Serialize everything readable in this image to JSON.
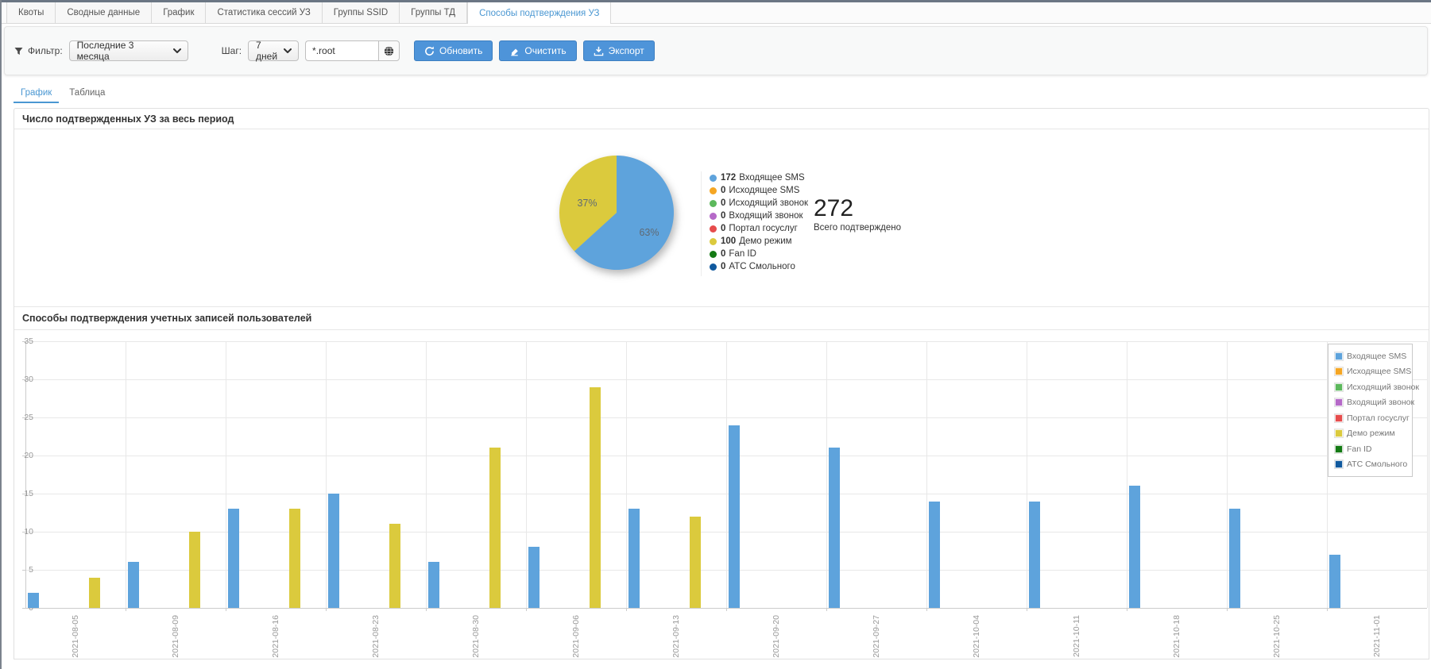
{
  "tabs": {
    "items": [
      "Квоты",
      "Сводные данные",
      "График",
      "Статистика сессий УЗ",
      "Группы SSID",
      "Группы ТД",
      "Способы подтверждения УЗ"
    ],
    "active": "Способы подтверждения УЗ"
  },
  "toolbar": {
    "filter_label": "Фильтр:",
    "filter_value": "Последние 3 месяца",
    "step_label": "Шаг:",
    "step_value": "7 дней",
    "query_value": "*.root",
    "refresh_label": "Обновить",
    "clear_label": "Очистить",
    "export_label": "Экспорт"
  },
  "view_tabs": {
    "items": [
      "График",
      "Таблица"
    ],
    "active": "График"
  },
  "sections": {
    "pie_title": "Число подтвержденных УЗ за весь период",
    "bar_title": "Способы подтверждения учетных записей пользователей"
  },
  "summary": {
    "total": "272",
    "total_label": "Всего подтверждено"
  },
  "palette": {
    "accent_blue": "#4a97d2",
    "button_blue": "#4e94d9",
    "series": [
      "#5ea3dc",
      "#f5a623",
      "#5cb85c",
      "#b569c8",
      "#e64c4c",
      "#dbca3d",
      "#147a14",
      "#10599e"
    ]
  },
  "chart_data": [
    {
      "type": "pie",
      "title": "Число подтвержденных УЗ за весь период",
      "labels": [
        "Входящее SMS",
        "Исходящее SMS",
        "Исходящий звонок",
        "Входящий звонок",
        "Портал госуслуг",
        "Демо режим",
        "Fan ID",
        "АТС Смольного"
      ],
      "values": [
        172,
        0,
        0,
        0,
        0,
        100,
        0,
        0
      ],
      "colors": [
        "#5ea3dc",
        "#f5a623",
        "#5cb85c",
        "#b569c8",
        "#e64c4c",
        "#dbca3d",
        "#147a14",
        "#10599e"
      ],
      "shown_percent_labels": [
        "63%",
        "37%"
      ],
      "total": 272,
      "total_label": "Всего подтверждено",
      "legend_position": "right"
    },
    {
      "type": "bar",
      "title": "Способы подтверждения учетных записей пользователей",
      "categories": [
        "2021-08-05",
        "2021-08-09",
        "2021-08-16",
        "2021-08-23",
        "2021-08-30",
        "2021-09-06",
        "2021-09-13",
        "2021-09-20",
        "2021-09-27",
        "2021-10-04",
        "2021-10-11",
        "2021-10-18",
        "2021-10-25",
        "2021-11-01"
      ],
      "ylim": [
        0,
        35
      ],
      "ytick_step": 5,
      "grid": true,
      "legend_position": "top-right",
      "series": [
        {
          "name": "Входящее SMS",
          "color": "#5ea3dc",
          "values": [
            2,
            6,
            13,
            15,
            6,
            8,
            13,
            24,
            21,
            14,
            14,
            16,
            13,
            7
          ]
        },
        {
          "name": "Исходящее SMS",
          "color": "#f5a623",
          "values": [
            0,
            0,
            0,
            0,
            0,
            0,
            0,
            0,
            0,
            0,
            0,
            0,
            0,
            0
          ]
        },
        {
          "name": "Исходящий звонок",
          "color": "#5cb85c",
          "values": [
            0,
            0,
            0,
            0,
            0,
            0,
            0,
            0,
            0,
            0,
            0,
            0,
            0,
            0
          ]
        },
        {
          "name": "Входящий звонок",
          "color": "#b569c8",
          "values": [
            0,
            0,
            0,
            0,
            0,
            0,
            0,
            0,
            0,
            0,
            0,
            0,
            0,
            0
          ]
        },
        {
          "name": "Портал госуслуг",
          "color": "#e64c4c",
          "values": [
            0,
            0,
            0,
            0,
            0,
            0,
            0,
            0,
            0,
            0,
            0,
            0,
            0,
            0
          ]
        },
        {
          "name": "Демо режим",
          "color": "#dbca3d",
          "values": [
            4,
            10,
            13,
            11,
            21,
            29,
            12,
            0,
            0,
            0,
            0,
            0,
            0,
            0
          ]
        },
        {
          "name": "Fan ID",
          "color": "#147a14",
          "values": [
            0,
            0,
            0,
            0,
            0,
            0,
            0,
            0,
            0,
            0,
            0,
            0,
            0,
            0
          ]
        },
        {
          "name": "АТС Смольного",
          "color": "#10599e",
          "values": [
            0,
            0,
            0,
            0,
            0,
            0,
            0,
            0,
            0,
            0,
            0,
            0,
            0,
            0
          ]
        }
      ]
    }
  ]
}
